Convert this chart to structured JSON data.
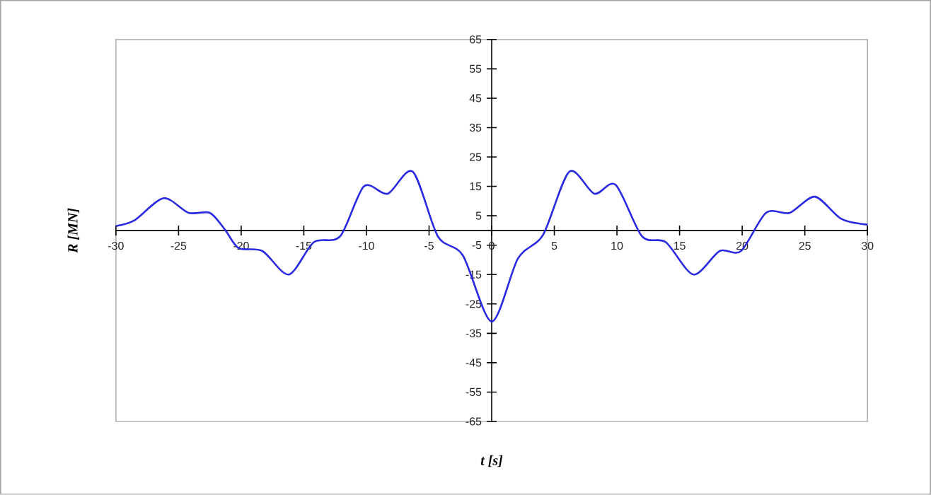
{
  "chart_data": {
    "type": "line",
    "xlabel": "t  [s]",
    "ylabel": "R [MN]",
    "xlim": [
      -30,
      30
    ],
    "ylim": [
      -65,
      65
    ],
    "xticks": [
      -30,
      -25,
      -20,
      -15,
      -10,
      -5,
      0,
      5,
      10,
      15,
      20,
      25,
      30
    ],
    "yticks": [
      -65,
      -55,
      -45,
      -35,
      -25,
      -15,
      -5,
      5,
      15,
      25,
      35,
      45,
      55,
      65
    ],
    "grid": false,
    "marker": "none",
    "line_style": "solid",
    "series": [
      {
        "color": "#2a2ae0",
        "x": [
          -30,
          -28.5,
          -26.2,
          -24.2,
          -22.5,
          -21.3,
          -20.2,
          -18.3,
          -16.2,
          -14.2,
          -12.1,
          -10.2,
          -8.3,
          -6.3,
          -4.3,
          -2.3,
          0,
          2.1,
          4.1,
          6.2,
          8.2,
          9.9,
          12,
          13.9,
          16.1,
          18.2,
          19.9,
          21.9,
          23.8,
          25.8,
          27.9,
          30
        ],
        "values": [
          1.5,
          3.5,
          11,
          6,
          6,
          0.3,
          -6,
          -7,
          -15,
          -4,
          -2,
          15,
          12.5,
          20,
          -2,
          -8.5,
          -31,
          -9.5,
          -1.5,
          20,
          12.5,
          15.5,
          -2,
          -4,
          -15,
          -7,
          -7,
          6,
          6,
          11.5,
          4,
          2
        ]
      }
    ]
  }
}
